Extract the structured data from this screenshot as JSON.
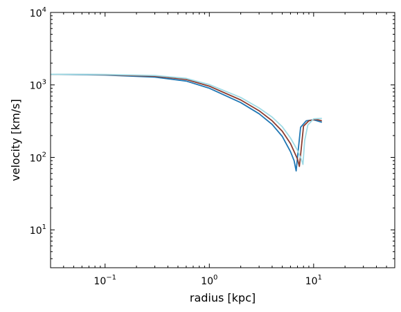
{
  "chart_data": {
    "type": "line",
    "xlabel": "radius [kpc]",
    "ylabel": "velocity [km/s]",
    "xscale": "log",
    "yscale": "log",
    "xlim": [
      0.03,
      60
    ],
    "ylim": [
      3,
      10000
    ],
    "grid": false,
    "x_ticks": [
      {
        "base": "10",
        "exp": "−1",
        "value": 0.1
      },
      {
        "base": "10",
        "exp": "0",
        "value": 1
      },
      {
        "base": "10",
        "exp": "1",
        "value": 10
      }
    ],
    "y_ticks": [
      {
        "base": "10",
        "exp": "1",
        "value": 10
      },
      {
        "base": "10",
        "exp": "2",
        "value": 100
      },
      {
        "base": "10",
        "exp": "3",
        "value": 1000
      },
      {
        "base": "10",
        "exp": "4",
        "value": 10000
      }
    ],
    "series": [
      {
        "color": "#1f77b4",
        "x": [
          0.03,
          0.1,
          0.3,
          0.6,
          1.0,
          2.0,
          3.0,
          4.0,
          5.0,
          6.0,
          6.5,
          6.8,
          7.0,
          7.5,
          8.5,
          10.0,
          12.0
        ],
        "y": [
          1400,
          1370,
          1280,
          1130,
          900,
          570,
          400,
          285,
          195,
          120,
          90,
          65,
          100,
          260,
          320,
          330,
          305
        ]
      },
      {
        "color": "#8c3b2e",
        "x": [
          0.03,
          0.1,
          0.3,
          0.6,
          1.0,
          2.0,
          3.0,
          4.0,
          5.0,
          6.0,
          7.0,
          7.3,
          7.6,
          8.0,
          9.0,
          10.5,
          12.0
        ],
        "y": [
          1400,
          1385,
          1320,
          1190,
          960,
          620,
          440,
          320,
          230,
          155,
          95,
          75,
          130,
          270,
          320,
          335,
          320
        ]
      },
      {
        "color": "#9edae5",
        "x": [
          0.03,
          0.1,
          0.3,
          0.6,
          1.0,
          2.0,
          3.0,
          4.0,
          5.0,
          6.0,
          7.0,
          7.6,
          7.9,
          8.2,
          8.8,
          10.0,
          12.0
        ],
        "y": [
          1400,
          1395,
          1350,
          1230,
          1010,
          670,
          480,
          360,
          265,
          185,
          125,
          95,
          80,
          170,
          280,
          340,
          345
        ]
      }
    ]
  }
}
